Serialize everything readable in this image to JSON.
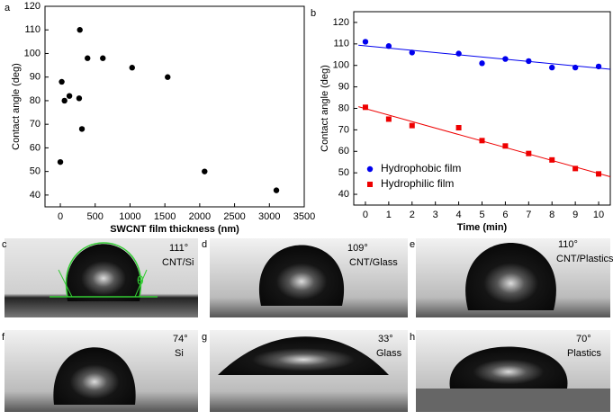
{
  "chart_data": [
    {
      "type": "scatter",
      "panel": "a",
      "x_label": "SWCNT film thickness (nm)",
      "y_label": "Contact angle (deg)",
      "color": "#000000",
      "marker": "circle",
      "x": [
        0,
        20,
        60,
        130,
        270,
        280,
        310,
        390,
        610,
        1030,
        1540,
        2070,
        3100
      ],
      "values": [
        54,
        88,
        80,
        82,
        81,
        110,
        68,
        98,
        98,
        94,
        90,
        50,
        42
      ],
      "xlim": [
        -220,
        3500
      ],
      "xticks": [
        0,
        500,
        1000,
        1500,
        2000,
        2500,
        3000,
        3500
      ],
      "ylim": [
        35,
        120
      ],
      "yticks": [
        40,
        50,
        60,
        70,
        80,
        90,
        100,
        110,
        120
      ]
    },
    {
      "type": "scatter",
      "panel": "b",
      "x_label": "Time (min)",
      "y_label": "Contact angle (deg)",
      "legend": "lower left",
      "x": [
        0,
        1,
        2,
        4,
        5,
        6,
        7,
        8,
        9,
        10
      ],
      "series": [
        {
          "name": "Hydrophobic film",
          "color": "#0000ee",
          "marker": "circle",
          "values": [
            111,
            109,
            106,
            105.5,
            101,
            103,
            102,
            99,
            99,
            99.5
          ],
          "fit_line": {
            "x": [
              -0.3,
              10.5
            ],
            "values": [
              109.4,
              98.2
            ]
          }
        },
        {
          "name": "Hydrophilic film",
          "color": "#ee0000",
          "marker": "square",
          "values": [
            80.5,
            75,
            72,
            71,
            65,
            62.5,
            59,
            56,
            52,
            49.5
          ],
          "fit_line": {
            "x": [
              -0.3,
              10.5
            ],
            "values": [
              80.8,
              48.2
            ]
          }
        }
      ],
      "xlim": [
        -0.5,
        10.5
      ],
      "xticks": [
        0,
        1,
        2,
        3,
        4,
        5,
        6,
        7,
        8,
        9,
        10
      ],
      "ylim": [
        35,
        125
      ],
      "yticks": [
        40,
        50,
        60,
        70,
        80,
        90,
        100,
        110,
        120
      ]
    }
  ],
  "photos": [
    {
      "panel": "c",
      "angle": "111°",
      "substrate": "CNT/Si",
      "symbol": "θ"
    },
    {
      "panel": "d",
      "angle": "109°",
      "substrate": "CNT/Glass"
    },
    {
      "panel": "e",
      "angle": "110°",
      "substrate": "CNT/Plastics"
    },
    {
      "panel": "f",
      "angle": "74°",
      "substrate": "Si"
    },
    {
      "panel": "g",
      "angle": "33°",
      "substrate": "Glass"
    },
    {
      "panel": "h",
      "angle": "70°",
      "substrate": "Plastics"
    }
  ]
}
